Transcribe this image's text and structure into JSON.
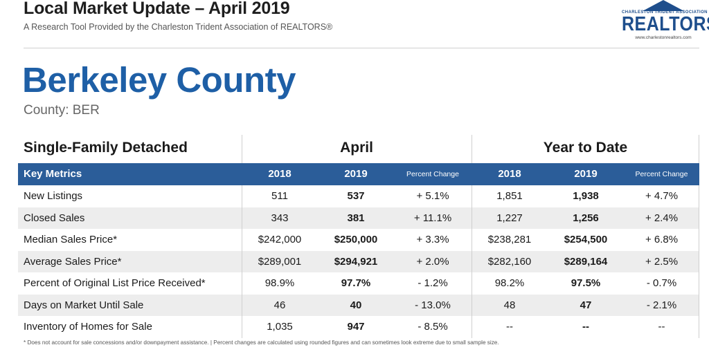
{
  "header": {
    "title": "Local Market Update – April 2019",
    "subtitle": "A Research Tool Provided by the Charleston Trident Association of REALTORS®"
  },
  "logo": {
    "association_text": "CHARLESTON TRIDENT ASSOCIATION OF",
    "wordmark": "REALTORS",
    "registered_mark": "®",
    "url": "www.charlestonrealtors.com",
    "color": "#1e4e8c"
  },
  "county": {
    "name": "Berkeley County",
    "code_label": "County: BER",
    "color": "#1e5fa6"
  },
  "table": {
    "property_type": "Single-Family Detached",
    "groups": [
      "April",
      "Year to Date"
    ],
    "header_color": "#2b5d99",
    "columns": [
      "Key Metrics",
      "2018",
      "2019",
      "Percent Change",
      "2018",
      "2019",
      "Percent Change"
    ],
    "rows": [
      {
        "metric": "New Listings",
        "a2018": "511",
        "a2019": "537",
        "apct": "+ 5.1%",
        "y2018": "1,851",
        "y2019": "1,938",
        "ypct": "+ 4.7%"
      },
      {
        "metric": "Closed Sales",
        "a2018": "343",
        "a2019": "381",
        "apct": "+ 11.1%",
        "y2018": "1,227",
        "y2019": "1,256",
        "ypct": "+ 2.4%"
      },
      {
        "metric": "Median Sales Price*",
        "a2018": "$242,000",
        "a2019": "$250,000",
        "apct": "+ 3.3%",
        "y2018": "$238,281",
        "y2019": "$254,500",
        "ypct": "+ 6.8%"
      },
      {
        "metric": "Average Sales Price*",
        "a2018": "$289,001",
        "a2019": "$294,921",
        "apct": "+ 2.0%",
        "y2018": "$282,160",
        "y2019": "$289,164",
        "ypct": "+ 2.5%"
      },
      {
        "metric": "Percent of Original List Price Received*",
        "a2018": "98.9%",
        "a2019": "97.7%",
        "apct": "- 1.2%",
        "y2018": "98.2%",
        "y2019": "97.5%",
        "ypct": "- 0.7%"
      },
      {
        "metric": "Days on Market Until Sale",
        "a2018": "46",
        "a2019": "40",
        "apct": "- 13.0%",
        "y2018": "48",
        "y2019": "47",
        "ypct": "- 2.1%"
      },
      {
        "metric": "Inventory of Homes for Sale",
        "a2018": "1,035",
        "a2019": "947",
        "apct": "- 8.5%",
        "y2018": "--",
        "y2019": "--",
        "ypct": "--"
      }
    ]
  },
  "footnote": "* Does not account for sale concessions and/or downpayment assistance.  |  Percent changes are calculated using rounded figures and can sometimes look extreme due to small sample size."
}
